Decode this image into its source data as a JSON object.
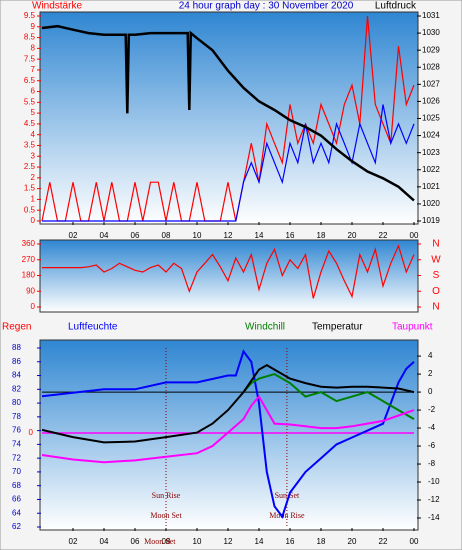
{
  "chart_data": [
    {
      "type": "line",
      "title": "24 hour graph day : 30 November 2020",
      "y_label": "Windstärke",
      "y2_label": "Luftdruck",
      "xlim": [
        0,
        24
      ],
      "xticks": [
        {
          "value": 2,
          "label": "02"
        },
        {
          "value": 4,
          "label": "04"
        },
        {
          "value": 6,
          "label": "06"
        },
        {
          "value": 8,
          "label": "08"
        },
        {
          "value": 10,
          "label": "10"
        },
        12,
        14,
        16,
        18,
        20,
        22,
        {
          "value": 24,
          "label": "00"
        }
      ],
      "ylim": [
        0,
        9.5
      ],
      "yticks": [
        0,
        0.5,
        1,
        1.5,
        2,
        2.5,
        3,
        3.5,
        4,
        4.5,
        5,
        5.5,
        6,
        6.5,
        7,
        7.5,
        8,
        8.5,
        9,
        9.5
      ],
      "y2lim": [
        1019,
        1031
      ],
      "y2ticks": [
        1019,
        1020,
        1021,
        1022,
        1023,
        1024,
        1025,
        1026,
        1027,
        1028,
        1029,
        1030,
        1031
      ],
      "series": [
        {
          "color": "#ff0000",
          "x": [
            0,
            0.5,
            1,
            1.5,
            2,
            2.5,
            3,
            3.5,
            4,
            4.5,
            5,
            5.5,
            6,
            6.5,
            7,
            7.5,
            8,
            8.5,
            9,
            9.5,
            10,
            10.5,
            11,
            11.5,
            12,
            12.5,
            13,
            13.5,
            14,
            14.5,
            15,
            15.5,
            16,
            16.5,
            17,
            17.5,
            18,
            18.5,
            19,
            19.5,
            20,
            20.5,
            21,
            21.5,
            22,
            22.5,
            23,
            23.5,
            24
          ],
          "values": [
            0,
            1.8,
            0,
            0,
            1.8,
            0,
            0,
            1.8,
            0,
            1.8,
            0,
            0,
            1.8,
            0,
            1.8,
            1.8,
            0,
            1.8,
            0,
            0,
            1.8,
            0,
            0,
            0,
            1.8,
            0,
            1.8,
            3.6,
            1.8,
            4.5,
            3.6,
            2.7,
            5.4,
            3.6,
            4.5,
            3.6,
            5.4,
            4.5,
            3.6,
            5.4,
            6.3,
            4.5,
            9.5,
            5.4,
            4.5,
            3.6,
            8.1,
            5.4,
            6.3
          ]
        },
        {
          "color": "#0000ff",
          "x": [
            0,
            0.5,
            1,
            1.5,
            2,
            2.5,
            3,
            3.5,
            4,
            4.5,
            5,
            5.5,
            6,
            6.5,
            7,
            7.5,
            8,
            8.5,
            9,
            9.5,
            10,
            10.5,
            11,
            11.5,
            12,
            12.5,
            13,
            13.5,
            14,
            14.5,
            15,
            15.5,
            16,
            16.5,
            17,
            17.5,
            18,
            18.5,
            19,
            19.5,
            20,
            20.5,
            21,
            21.5,
            22,
            22.5,
            23,
            23.5,
            24
          ],
          "values": [
            0,
            0,
            0,
            0,
            0,
            0,
            0,
            0,
            0,
            0,
            0,
            0,
            0,
            0,
            0,
            0,
            0,
            0,
            0,
            0,
            0,
            0,
            0,
            0,
            0,
            0,
            1.8,
            2.7,
            1.8,
            3.6,
            2.7,
            1.8,
            3.6,
            2.7,
            4.5,
            2.7,
            3.6,
            2.7,
            4.5,
            3.6,
            2.7,
            4.5,
            3.6,
            2.7,
            5.4,
            3.6,
            4.5,
            3.6,
            4.5
          ]
        },
        {
          "color": "#000000",
          "axis": "y2",
          "x": [
            0,
            1,
            2,
            3,
            4,
            5,
            5.4,
            5.5,
            5.6,
            6,
            7,
            8,
            9,
            9.4,
            9.5,
            9.6,
            10,
            11,
            12,
            13,
            14,
            15,
            16,
            17,
            18,
            19,
            20,
            21,
            22,
            23,
            24
          ],
          "values": [
            1030.3,
            1030.4,
            1030.2,
            1030.0,
            1029.9,
            1029.9,
            1029.9,
            1025.3,
            1029.9,
            1029.9,
            1030.0,
            1030.0,
            1030.0,
            1030.0,
            1025.5,
            1030.0,
            1029.7,
            1029.0,
            1027.8,
            1026.8,
            1026.0,
            1025.5,
            1024.9,
            1024.5,
            1024.0,
            1023.2,
            1022.5,
            1021.9,
            1021.5,
            1021.0,
            1020.2
          ]
        }
      ]
    },
    {
      "type": "line",
      "xlim": [
        0,
        24
      ],
      "ylim": [
        0,
        360
      ],
      "yticks": [
        0,
        90,
        180,
        270,
        360
      ],
      "y2lim": [
        0,
        360
      ],
      "y2ticks": [
        {
          "value": 360,
          "label": "N"
        },
        {
          "value": 270,
          "label": "W"
        },
        {
          "value": 180,
          "label": "S"
        },
        {
          "value": 90,
          "label": "O"
        },
        {
          "value": 0,
          "label": "N"
        }
      ],
      "series": [
        {
          "color": "#ff0000",
          "x": [
            0,
            0.5,
            1,
            1.5,
            2,
            2.5,
            3,
            3.5,
            4,
            4.5,
            5,
            5.5,
            6,
            6.5,
            7,
            7.5,
            8,
            8.5,
            9,
            9.5,
            10,
            10.5,
            11,
            11.5,
            12,
            12.5,
            13,
            13.5,
            14,
            14.5,
            15,
            15.5,
            16,
            16.5,
            17,
            17.5,
            18,
            18.5,
            19,
            19.5,
            20,
            20.5,
            21,
            21.5,
            22,
            22.5,
            23,
            23.5,
            24
          ],
          "values": [
            225,
            225,
            225,
            225,
            225,
            225,
            230,
            240,
            200,
            220,
            250,
            230,
            210,
            200,
            225,
            240,
            200,
            250,
            220,
            90,
            200,
            250,
            300,
            230,
            150,
            280,
            200,
            300,
            100,
            250,
            330,
            180,
            270,
            220,
            300,
            50,
            200,
            320,
            250,
            150,
            60,
            300,
            200,
            330,
            120,
            250,
            350,
            200,
            300
          ]
        }
      ]
    },
    {
      "type": "line",
      "xlim": [
        0,
        24
      ],
      "xticks": [
        {
          "value": 2,
          "label": "02"
        },
        {
          "value": 4,
          "label": "04"
        },
        {
          "value": 6,
          "label": "06"
        },
        {
          "value": 8,
          "label": "08"
        },
        {
          "value": 10,
          "label": "10"
        },
        12,
        14,
        16,
        18,
        20,
        22,
        {
          "value": 24,
          "label": "00"
        }
      ],
      "ylim": [
        62,
        88
      ],
      "yticks": [
        62,
        64,
        66,
        68,
        70,
        72,
        74,
        76,
        78,
        80,
        82,
        84,
        86,
        88
      ],
      "y2lim": [
        -15,
        4.9
      ],
      "y2ticks": [
        4,
        2,
        0,
        -2,
        -4,
        -6,
        -8,
        -10,
        -12,
        -14
      ],
      "rain_label": "Regen",
      "rain_ticks": [
        0
      ],
      "series": [
        {
          "name": "Luftfeuchte",
          "color": "#0000ff",
          "x": [
            0,
            2,
            4,
            6,
            8,
            10,
            12,
            12.5,
            13,
            13.5,
            14,
            14.5,
            15,
            15.5,
            16,
            17,
            18,
            19,
            20,
            21,
            22,
            22.5,
            23,
            23.5,
            24
          ],
          "values": [
            81,
            81.5,
            82,
            82,
            83,
            83,
            84,
            84,
            87.5,
            86,
            80,
            70,
            65,
            63.5,
            67,
            70,
            72,
            74,
            75,
            76,
            77,
            80,
            83,
            85,
            86
          ]
        },
        {
          "name": "Windchill",
          "color": "#008000",
          "axis": "y2",
          "x": [
            13,
            13.5,
            14,
            15,
            16,
            17,
            18,
            19,
            20,
            21,
            22,
            23,
            24
          ],
          "values": [
            0,
            1,
            1.5,
            2,
            1,
            -0.5,
            0,
            -1,
            -0.5,
            0,
            -1,
            -2,
            -3
          ]
        },
        {
          "name": "Temperatur",
          "color": "#000000",
          "axis": "y2",
          "x": [
            0,
            2,
            4,
            6,
            8,
            10,
            11,
            12,
            13,
            14,
            14.5,
            15,
            16,
            17,
            18,
            19,
            20,
            21,
            22,
            23,
            24
          ],
          "values": [
            -4.2,
            -5,
            -5.6,
            -5.5,
            -5,
            -4.5,
            -3.5,
            -2,
            0,
            2.5,
            3,
            2.5,
            1.5,
            1,
            0.6,
            0.5,
            0.6,
            0.6,
            0.5,
            0.4,
            0
          ]
        },
        {
          "name": "Taupunkt",
          "color": "#ff00ff",
          "axis": "y2",
          "x": [
            0,
            2,
            4,
            6,
            8,
            10,
            11,
            12,
            13,
            13.5,
            14,
            15,
            16,
            17,
            18,
            19,
            20,
            21,
            22,
            23,
            24
          ],
          "values": [
            -7,
            -7.5,
            -7.8,
            -7.6,
            -7.2,
            -6.8,
            -6,
            -4.5,
            -3,
            -1.5,
            -0.5,
            -3.5,
            -3.6,
            -3.8,
            -4,
            -4,
            -3.8,
            -3.5,
            -3.2,
            -2.6,
            -2
          ]
        }
      ],
      "annotations": [
        {
          "text": "Sun Rise",
          "x": 8
        },
        {
          "text": "Moon Set",
          "x": 8
        },
        {
          "text": "Sun Set",
          "x": 15.8
        },
        {
          "text": "Moon Rise",
          "x": 15.8
        },
        {
          "text": "Moon Set",
          "x": 7.6
        }
      ]
    }
  ]
}
